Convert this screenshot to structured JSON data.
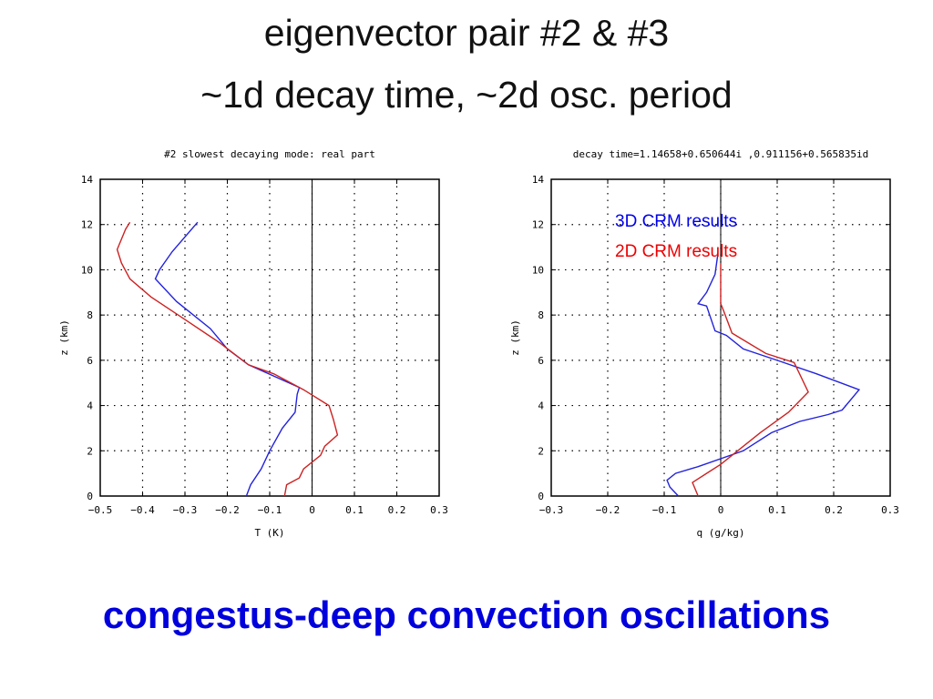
{
  "slide": {
    "title_line1": "eigenvector pair #2 & #3",
    "title_line2": "~1d decay time, ~2d osc. period",
    "footer": "congestus-deep convection oscillations"
  },
  "colors": {
    "blue": "#2222dd",
    "red": "#cc2222",
    "footer": "#0000dd",
    "legend_blue": "#0000ee",
    "legend_red": "#ee0000"
  },
  "chart_data": [
    {
      "type": "line",
      "title": "#2 slowest decaying mode: real part",
      "xlabel": "T (K)",
      "ylabel": "z (km)",
      "xlim": [
        -0.5,
        0.3
      ],
      "ylim": [
        0,
        14
      ],
      "xticks": [
        -0.5,
        -0.4,
        -0.3,
        -0.2,
        -0.1,
        0,
        0.1,
        0.2,
        0.3
      ],
      "xticklabels": [
        "−0.5",
        "−0.4",
        "−0.3",
        "−0.2",
        "−0.1",
        "0",
        "0.1",
        "0.2",
        "0.3"
      ],
      "yticks": [
        0,
        2,
        4,
        6,
        8,
        10,
        12,
        14
      ],
      "yticklabels": [
        "0",
        "2",
        "4",
        "6",
        "8",
        "10",
        "12",
        "14"
      ],
      "grid": true,
      "zero_line": 0,
      "series": [
        {
          "color": "blue",
          "points": [
            [
              -0.155,
              0
            ],
            [
              -0.145,
              0.5
            ],
            [
              -0.12,
              1.2
            ],
            [
              -0.1,
              2
            ],
            [
              -0.07,
              3
            ],
            [
              -0.04,
              3.7
            ],
            [
              -0.035,
              4.5
            ],
            [
              -0.03,
              4.8
            ],
            [
              -0.15,
              5.8
            ],
            [
              -0.2,
              6.5
            ],
            [
              -0.24,
              7.4
            ],
            [
              -0.32,
              8.6
            ],
            [
              -0.37,
              9.6
            ],
            [
              -0.36,
              10
            ],
            [
              -0.33,
              10.8
            ],
            [
              -0.27,
              12.1
            ]
          ]
        },
        {
          "color": "red",
          "points": [
            [
              -0.065,
              0
            ],
            [
              -0.06,
              0.5
            ],
            [
              -0.03,
              0.8
            ],
            [
              -0.02,
              1.2
            ],
            [
              0.02,
              1.8
            ],
            [
              0.03,
              2.2
            ],
            [
              0.06,
              2.7
            ],
            [
              0.05,
              3.4
            ],
            [
              0.04,
              4
            ],
            [
              -0.02,
              4.7
            ],
            [
              -0.09,
              5.4
            ],
            [
              -0.15,
              5.8
            ],
            [
              -0.22,
              6.8
            ],
            [
              -0.3,
              7.8
            ],
            [
              -0.38,
              8.8
            ],
            [
              -0.43,
              9.6
            ],
            [
              -0.45,
              10.3
            ],
            [
              -0.46,
              10.9
            ],
            [
              -0.44,
              11.8
            ],
            [
              -0.43,
              12.1
            ]
          ]
        }
      ]
    },
    {
      "type": "line",
      "title": "decay time=1.14658+0.650644i ,0.911156+0.565835id",
      "xlabel": "q (g/kg)",
      "ylabel": "z (km)",
      "xlim": [
        -0.3,
        0.3
      ],
      "ylim": [
        0,
        14
      ],
      "xticks": [
        -0.3,
        -0.2,
        -0.1,
        0,
        0.1,
        0.2,
        0.3
      ],
      "xticklabels": [
        "−0.3",
        "−0.2",
        "−0.1",
        "0",
        "0.1",
        "0.2",
        "0.3"
      ],
      "yticks": [
        0,
        2,
        4,
        6,
        8,
        10,
        12,
        14
      ],
      "yticklabels": [
        "0",
        "2",
        "4",
        "6",
        "8",
        "10",
        "12",
        "14"
      ],
      "grid": true,
      "zero_line": 0,
      "legend": [
        {
          "label": "3D CRM results",
          "color": "legend_blue"
        },
        {
          "label": "2D CRM results",
          "color": "legend_red"
        }
      ],
      "legend_position": "top-right",
      "series": [
        {
          "name": "3D CRM results",
          "color": "blue",
          "points": [
            [
              -0.075,
              0
            ],
            [
              -0.09,
              0.4
            ],
            [
              -0.095,
              0.7
            ],
            [
              -0.08,
              1
            ],
            [
              -0.04,
              1.3
            ],
            [
              0.04,
              2
            ],
            [
              0.09,
              2.8
            ],
            [
              0.14,
              3.3
            ],
            [
              0.19,
              3.6
            ],
            [
              0.215,
              3.8
            ],
            [
              0.245,
              4.7
            ],
            [
              0.17,
              5.4
            ],
            [
              0.1,
              6
            ],
            [
              0.04,
              6.5
            ],
            [
              0.01,
              7.1
            ],
            [
              -0.01,
              7.3
            ],
            [
              -0.025,
              8.4
            ],
            [
              -0.04,
              8.5
            ],
            [
              -0.025,
              9
            ],
            [
              -0.01,
              9.8
            ],
            [
              -0.005,
              10.7
            ]
          ]
        },
        {
          "name": "2D CRM results",
          "color": "red",
          "points": [
            [
              -0.04,
              0
            ],
            [
              -0.05,
              0.6
            ],
            [
              -0.025,
              1
            ],
            [
              0,
              1.4
            ],
            [
              0.03,
              2
            ],
            [
              0.07,
              2.8
            ],
            [
              0.12,
              3.7
            ],
            [
              0.155,
              4.6
            ],
            [
              0.13,
              5.9
            ],
            [
              0.08,
              6.3
            ],
            [
              0.02,
              7.2
            ],
            [
              0.005,
              8.2
            ],
            [
              0,
              8.5
            ],
            [
              0,
              10.3
            ]
          ]
        }
      ]
    }
  ]
}
